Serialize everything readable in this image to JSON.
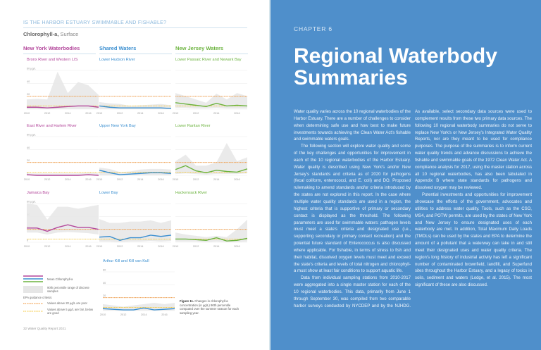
{
  "left_page": {
    "kicker": "IS THE HARBOR ESTUARY SWIMMABLE AND FISHABLE?",
    "subtitle_bold": "Chlorophyll-a,",
    "subtitle_rest": " Surface",
    "columns": [
      {
        "label": "New York Waterbodies",
        "color": "#b3479b"
      },
      {
        "label": "Shared Waters",
        "color": "#3b8fd0"
      },
      {
        "label": "New Jersey Waters",
        "color": "#6cb33f"
      }
    ],
    "legend": {
      "mean_label": "Mean Chlorophyll-a",
      "range_label": "90th percentile range of discrete samples",
      "criteria_heading": "EPA guidance criteria:",
      "poor_label": "Values above 20 µg/L are poor",
      "fair_label": "Values above 5 µg/L are fair, below are good"
    },
    "caption_bold": "Figure 11.",
    "caption_text": " Changes in chlorophyll-a concentration (in µg/L) 90th percentile computed over the summer season for each sampling year.",
    "footer": "32  Water Quality Report 2021"
  },
  "right_page": {
    "chapter": "CHAPTER 6",
    "title": "Regional Waterbody Summaries",
    "paragraphs": [
      "Water quality varies across the 10 regional waterbodies of the Harbor Estuary. There are a number of challenges to consider when determining safe use and how best to make future investments towards achieving the Clean Water Act's fishable and swimmable waters goals.",
      "The following section will explore water quality and some of the key challenges and opportunities for improvement in each of the 10 regional waterbodies of the Harbor Estuary. Water quality is described using New York's and/or New Jersey's standards and criteria as of 2020 for pathogens (fecal coliform, enterococci, and E. coli) and DO. Proposed rulemaking to amend standards and/or criteria introduced by the states are not explored in this report. In the case where multiple water quality standards are used in a region, the highest criteria that is supportive of primary or secondary contact is displayed as the threshold. The following parameters are used for swimmable waters: pathogen levels must meet a state's criteria and designated use (i.e., supporting secondary or primary contact recreation) and the potential future standard of Enterococcus is also discussed where applicable. For fishable, in terms of stress to fish and their habitat, dissolved oxygen levels must meet and exceed the state's criteria and levels of total nitrogen and chlorophyll-a must show at least fair conditions to support aquatic life.",
      "Data from individual sampling stations from 2010-2017 were aggregated into a single master station for each of the 10 regional waterbodies. This data, primarily from June 1 through September 30, was compiled from two comparable harbor surveys conducted by NYCDEP and by the NJHDG. As available, select secondary data sources were used to complement results from these two primary data sources. The following 10 regional waterbody summaries do not serve to replace New York's or New Jersey's Integrated Water Quality Reports, nor are they meant to be used for compliance purposes. The purpose of the summaries is to inform current water quality trends and advance discussions to achieve the fishable and swimmable goals of the 1972 Clean Water Act. A compliance analysis for 2017, using the master station across all 10 regional waterbodies, has also been tabulated in Appendix B where state standards for pathogens and dissolved oxygen may be reviewed.",
      "Potential investments and opportunities for improvement showcase the efforts of the government, advocates and utilities to address water quality. Tools, such as the CSO, MS4, and POTW permits, are used by the states of New York and New Jersey to ensure designated uses of each waterbody are met. In addition, Total Maximum Daily Loads (TMDLs) can be used by the states and EPA to determine the amount of a pollutant that a waterway can take in and still meet their designated uses and water quality criteria. The region's long history of industrial activity has left a significant number of contaminated brownfield, landfill, and Superfund sites throughout the Harbor Estuary, and a legacy of toxics in soils, sediment and waters (Lodge, et al. 2015). The most significant of these are also discussed."
    ]
  },
  "chart_data": {
    "type": "line",
    "x": [
      2010,
      2011,
      2012,
      2013,
      2014,
      2015,
      2016,
      2017
    ],
    "x_ticks": [
      "2010",
      "2012",
      "2014",
      "2016"
    ],
    "y_ticks": [
      "0",
      "20",
      "40",
      "60 µg/L"
    ],
    "ylim": [
      0,
      60
    ],
    "thresholds": [
      {
        "value": 20,
        "label": "poor",
        "color": "#f08a24"
      },
      {
        "value": 5,
        "label": "fair",
        "color": "#f3c530"
      }
    ],
    "band_color": "#e6e6e6",
    "panels": [
      {
        "title": "Bronx River and Western LIS",
        "group": 0,
        "mean": [
          3,
          3,
          2,
          3,
          4,
          5,
          5,
          3
        ],
        "upper": [
          15,
          16,
          15,
          58,
          25,
          42,
          37,
          22
        ],
        "lower": [
          0,
          0,
          0,
          0,
          0,
          0,
          0,
          0
        ]
      },
      {
        "title": "Lower Hudson River",
        "group": 1,
        "mean": [
          5,
          3,
          2,
          2,
          2,
          2,
          2,
          1
        ],
        "upper": [
          11,
          9,
          8,
          5,
          6,
          7,
          8,
          6
        ],
        "lower": [
          0,
          0,
          0,
          0,
          0,
          0,
          0,
          0
        ]
      },
      {
        "title": "Lower Passaic River and Newark Bay",
        "group": 2,
        "mean": [
          10,
          8,
          6,
          4,
          9,
          5,
          6,
          5
        ],
        "upper": [
          25,
          20,
          15,
          10,
          24,
          15,
          25,
          20
        ],
        "lower": [
          2,
          2,
          1,
          1,
          2,
          1,
          1,
          1
        ]
      },
      {
        "title": "East River and Harlem River",
        "group": 0,
        "mean": [
          1,
          0,
          0,
          0,
          0,
          0,
          1,
          0
        ],
        "upper": [
          3,
          3,
          3,
          3,
          3,
          3,
          4,
          3
        ],
        "lower": [
          0,
          0,
          0,
          0,
          0,
          0,
          0,
          0
        ]
      },
      {
        "title": "Upper New York Bay",
        "group": 1,
        "mean": [
          8,
          4,
          1,
          2,
          3,
          4,
          4,
          3
        ],
        "upper": [
          12,
          10,
          5,
          6,
          9,
          10,
          10,
          9
        ],
        "lower": [
          0,
          0,
          0,
          0,
          0,
          0,
          0,
          0
        ]
      },
      {
        "title": "Lower Raritan River",
        "group": 2,
        "mean": [
          9,
          15,
          7,
          4,
          8,
          6,
          5,
          10
        ],
        "upper": [
          22,
          32,
          15,
          15,
          20,
          50,
          22,
          28
        ],
        "lower": [
          2,
          3,
          2,
          1,
          2,
          2,
          2,
          3
        ]
      },
      {
        "title": "Jamaica Bay",
        "group": 0,
        "mean": [
          22,
          22,
          17,
          23,
          27,
          23,
          23,
          20
        ],
        "upper": [
          60,
          58,
          35,
          55,
          55,
          52,
          55,
          58
        ],
        "lower": [
          15,
          15,
          12,
          15,
          16,
          15,
          14,
          12
        ]
      },
      {
        "title": "Lower Bay",
        "group": 1,
        "mean": [
          8,
          9,
          3,
          7,
          7,
          11,
          9,
          11
        ],
        "upper": [
          36,
          30,
          30,
          32,
          32,
          34,
          30,
          34
        ],
        "lower": [
          1,
          1,
          0,
          1,
          1,
          2,
          1,
          2
        ]
      },
      {
        "title": "Hackensack River",
        "group": 2,
        "mean": [
          5,
          5,
          4,
          3,
          7,
          2,
          3,
          6
        ],
        "upper": [
          15,
          12,
          10,
          8,
          10,
          8,
          20,
          35
        ],
        "lower": [
          1,
          1,
          1,
          0,
          1,
          0,
          0,
          1
        ]
      },
      {
        "title": "Arthur Kill and Kill van Kull",
        "group": 1,
        "mean": [
          3,
          2,
          1,
          1,
          4,
          1,
          2,
          3
        ],
        "upper": [
          10,
          8,
          6,
          8,
          10,
          12,
          10,
          12
        ],
        "lower": [
          0,
          0,
          0,
          0,
          0,
          0,
          0,
          0
        ]
      }
    ]
  }
}
